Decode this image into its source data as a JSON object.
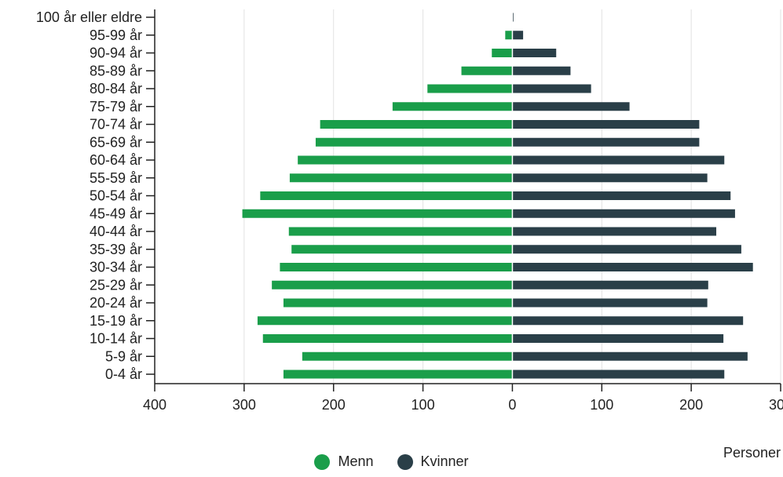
{
  "chart_data": {
    "type": "bar",
    "orientation": "horizontal",
    "subtype": "population-pyramid",
    "categories": [
      "0-4 år",
      "5-9 år",
      "10-14 år",
      "15-19 år",
      "20-24 år",
      "25-29 år",
      "30-34 år",
      "35-39 år",
      "40-44 år",
      "45-49 år",
      "50-54 år",
      "55-59 år",
      "60-64 år",
      "65-69 år",
      "70-74 år",
      "75-79 år",
      "80-84 år",
      "85-89 år",
      "90-94 år",
      "95-99 år",
      "100 år eller eldre"
    ],
    "series": [
      {
        "name": "Menn",
        "color": "#1a9e4a",
        "values": [
          256,
          235,
          279,
          285,
          256,
          269,
          260,
          247,
          250,
          302,
          282,
          249,
          240,
          220,
          215,
          134,
          95,
          57,
          23,
          8,
          0
        ]
      },
      {
        "name": "Kvinner",
        "color": "#2a3f48",
        "values": [
          237,
          263,
          236,
          258,
          218,
          219,
          269,
          256,
          228,
          249,
          244,
          218,
          237,
          209,
          209,
          131,
          88,
          65,
          49,
          12,
          1
        ]
      }
    ],
    "xlabel": "Personer",
    "xticks": [
      "400",
      "300",
      "200",
      "100",
      "0",
      "100",
      "200",
      "300"
    ],
    "xlim": [
      -400,
      300
    ],
    "grid": "vertical",
    "legend_position": "bottom-center"
  }
}
